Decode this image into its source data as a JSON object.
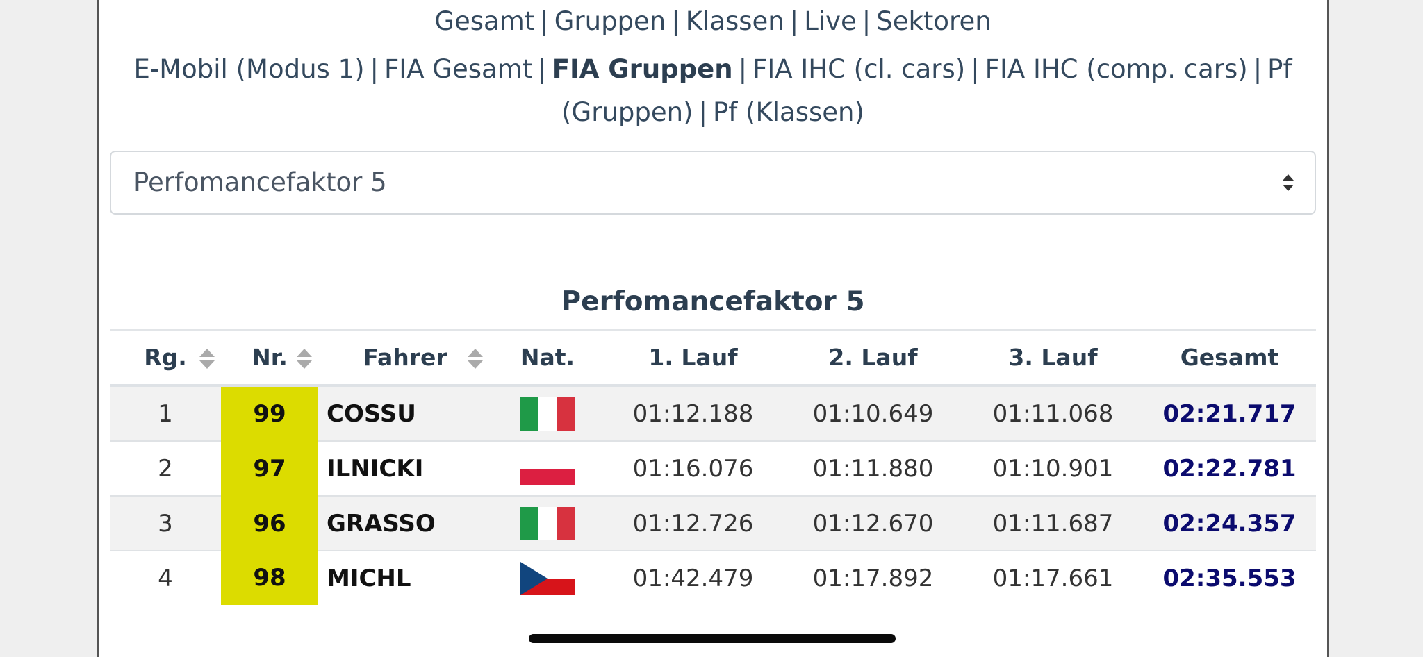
{
  "nav": {
    "row1": [
      "Gesamt",
      "Gruppen",
      "Klassen",
      "Live",
      "Sektoren"
    ],
    "row2": [
      "E-Mobil (Modus 1)",
      "FIA Gesamt",
      "FIA Gruppen",
      "FIA IHC (cl. cars)",
      "FIA IHC (comp. cars)",
      "Pf (Gruppen)",
      "Pf (Klassen)"
    ],
    "separator": "|",
    "active": "FIA Gruppen"
  },
  "select": {
    "value": "Perfomancefaktor 5",
    "icon": "sort-arrows-icon"
  },
  "table": {
    "title": "Perfomancefaktor 5",
    "headers": {
      "rank": "Rg.",
      "nr": "Nr.",
      "driver": "Fahrer",
      "nat": "Nat.",
      "run1": "1. Lauf",
      "run2": "2. Lauf",
      "run3": "3. Lauf",
      "total": "Gesamt"
    },
    "rows": [
      {
        "rank": "1",
        "nr": "99",
        "driver": "COSSU",
        "nat": "italy-flag-icon",
        "run1": "01:12.188",
        "run2": "01:10.649",
        "run3": "01:11.068",
        "total": "02:21.717"
      },
      {
        "rank": "2",
        "nr": "97",
        "driver": "ILNICKI",
        "nat": "poland-flag-icon",
        "run1": "01:16.076",
        "run2": "01:11.880",
        "run3": "01:10.901",
        "total": "02:22.781"
      },
      {
        "rank": "3",
        "nr": "96",
        "driver": "GRASSO",
        "nat": "italy-flag-icon",
        "run1": "01:12.726",
        "run2": "01:12.670",
        "run3": "01:11.687",
        "total": "02:24.357"
      },
      {
        "rank": "4",
        "nr": "98",
        "driver": "MICHL",
        "nat": "czech-flag-icon",
        "run1": "01:42.479",
        "run2": "01:17.892",
        "run3": "01:17.661",
        "total": "02:35.553"
      }
    ]
  },
  "colors": {
    "nr_highlight": "#dcdc00",
    "total_text": "#0b0b6e",
    "stripe": "#f2f2f2"
  }
}
